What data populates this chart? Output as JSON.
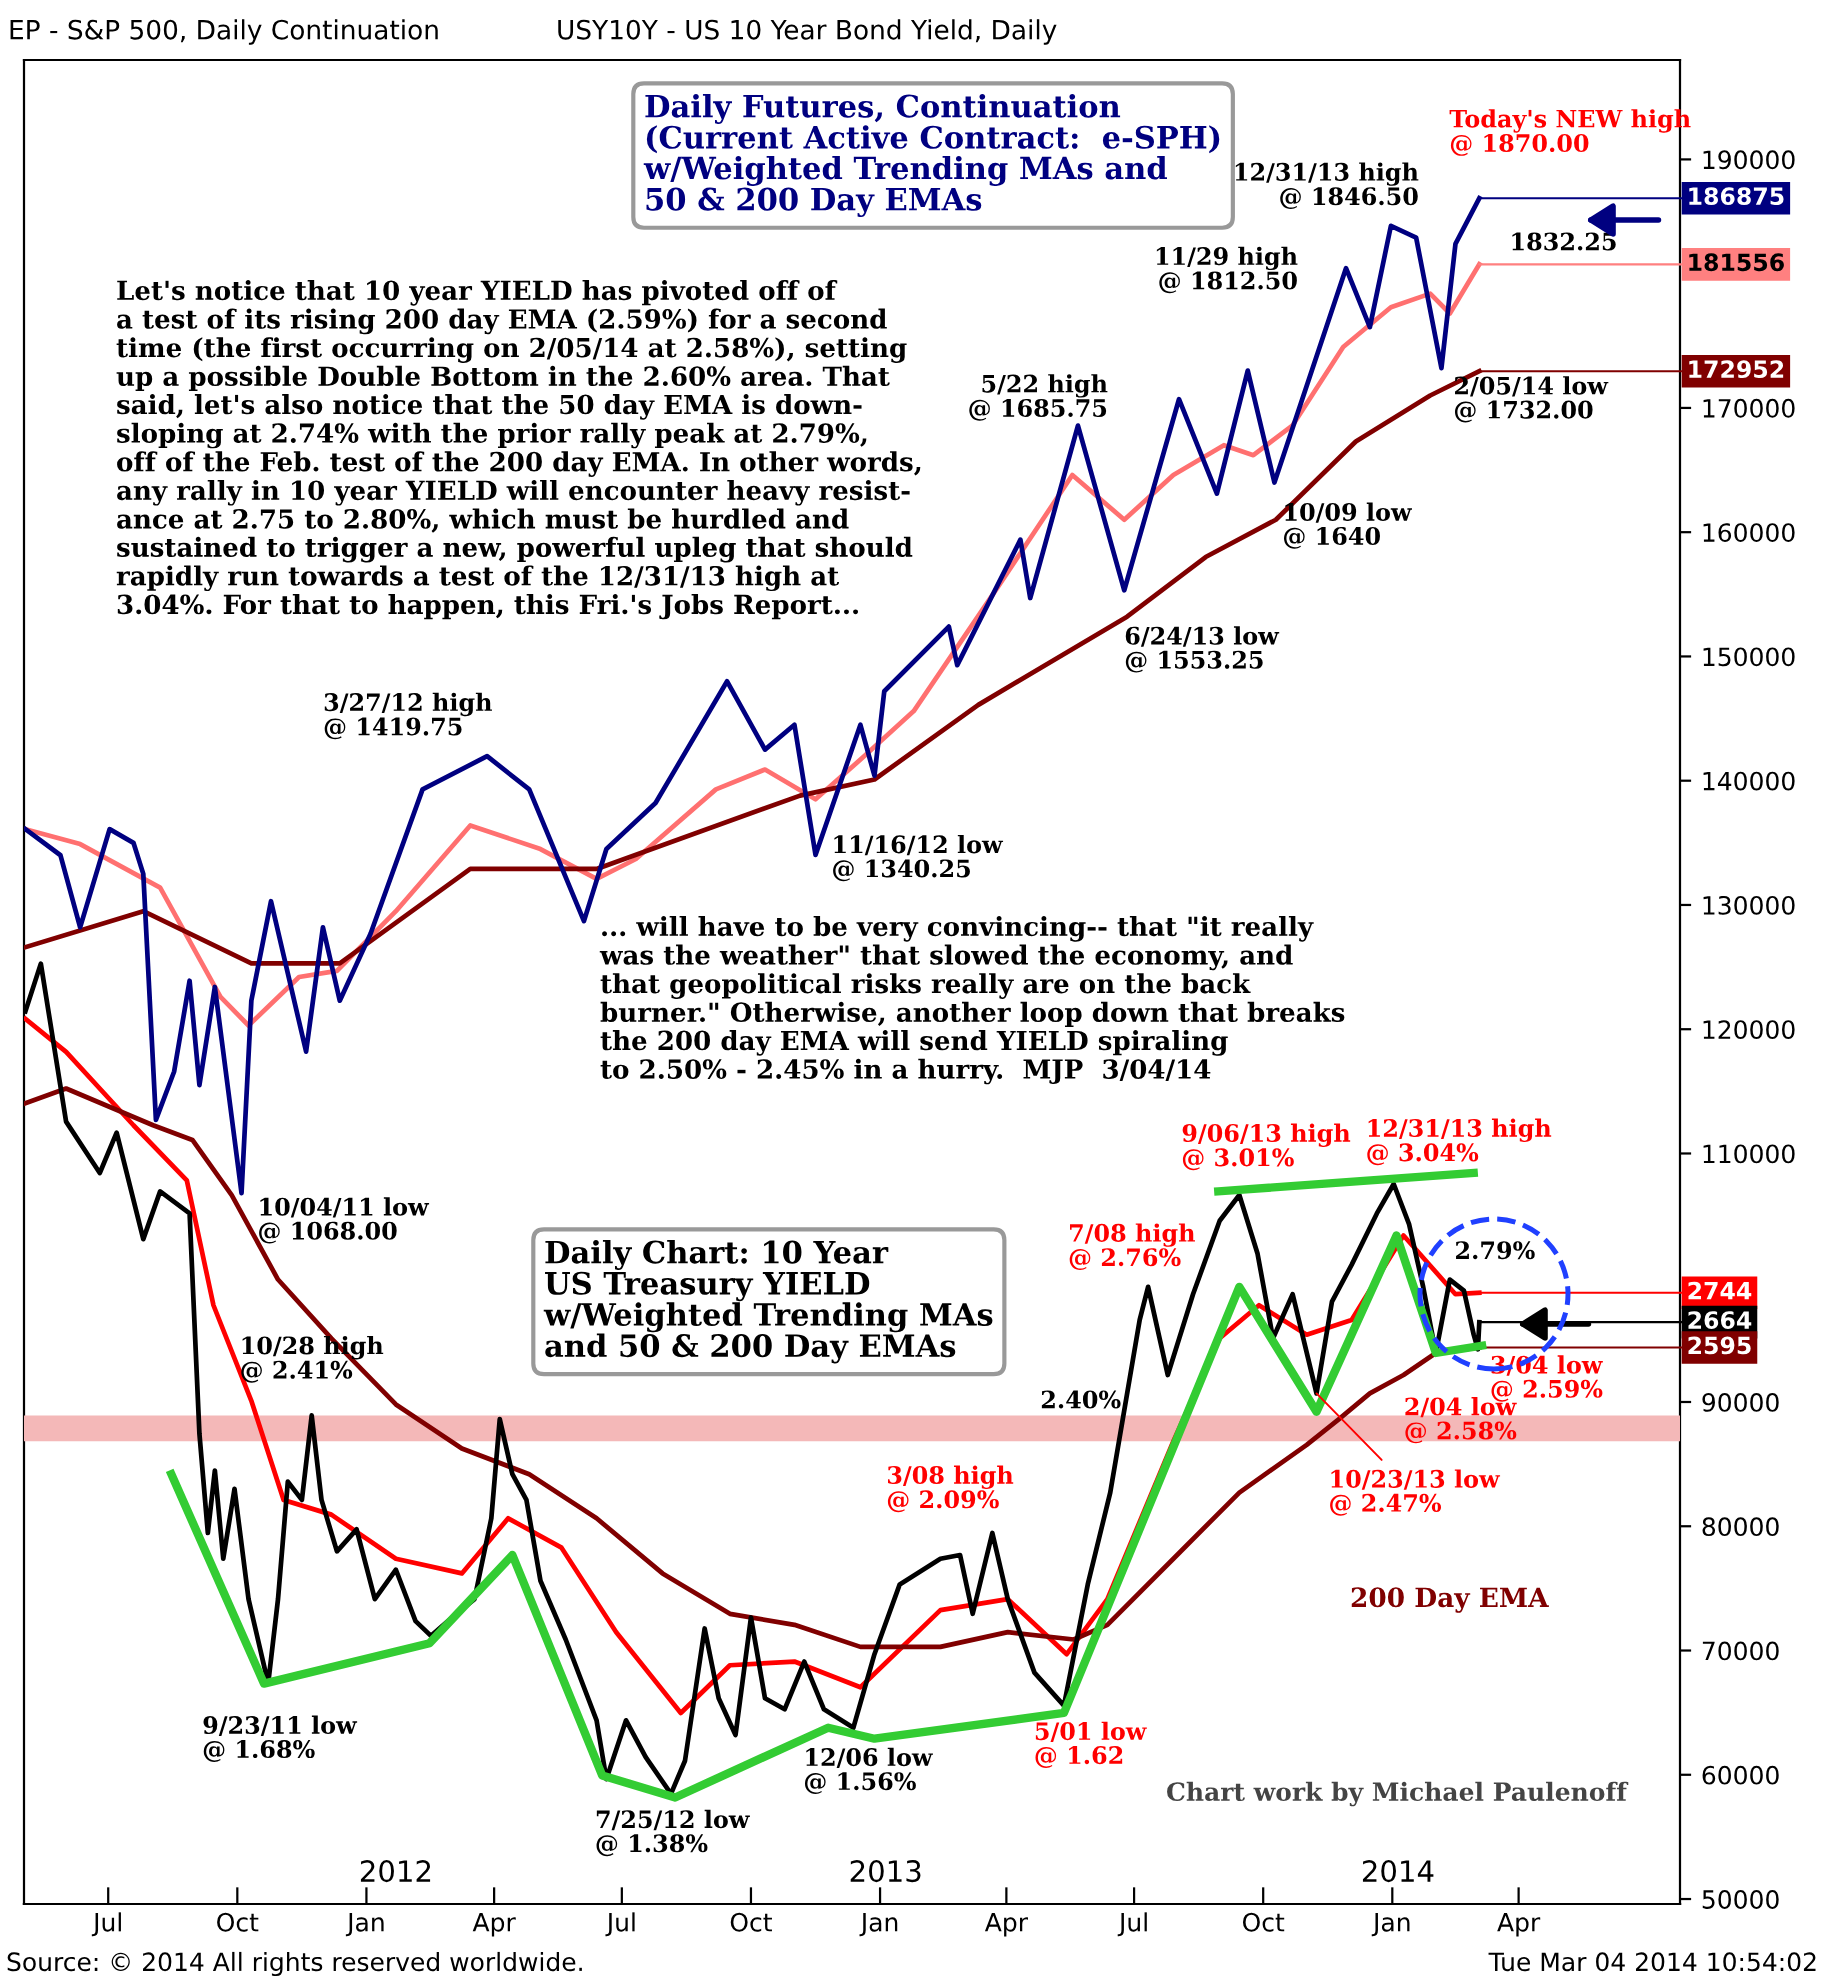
{
  "chart_data": [
    {
      "type": "line",
      "title": "EP - S&P 500, Daily Continuation",
      "xlim": [
        "2011-05-02",
        "2014-07-25"
      ],
      "xticks": [
        {
          "value": "2011-07-01",
          "label": "Jul"
        },
        {
          "value": "2011-10-01",
          "label": "Oct"
        },
        {
          "value": "2012-01-01",
          "label": "Jan"
        },
        {
          "value": "2012-04-01",
          "label": "Apr"
        },
        {
          "value": "2012-07-01",
          "label": "Jul"
        },
        {
          "value": "2012-10-01",
          "label": "Oct"
        },
        {
          "value": "2013-01-01",
          "label": "Jan"
        },
        {
          "value": "2013-04-01",
          "label": "Apr"
        },
        {
          "value": "2013-07-01",
          "label": "Jul"
        },
        {
          "value": "2013-10-01",
          "label": "Oct"
        },
        {
          "value": "2014-01-01",
          "label": "Jan"
        },
        {
          "value": "2014-04-01",
          "label": "Apr"
        }
      ],
      "x2lim": [
        "2011-05-02",
        "2014-07-25"
      ],
      "x2ticks": [
        {
          "value": "2012-01-22",
          "label": "2012"
        },
        {
          "value": "2013-01-05",
          "label": "2013"
        },
        {
          "value": "2014-01-05",
          "label": "2014"
        }
      ],
      "ylim": [
        49600,
        198000
      ],
      "yticks": [
        50000,
        60000,
        70000,
        80000,
        90000,
        110000,
        120000,
        130000,
        140000,
        150000,
        160000,
        170000,
        190000
      ],
      "series": [
        {
          "color": "#ff7070",
          "x": [
            "2011-05-03",
            "2011-06-11",
            "2011-08-07",
            "2011-09-19",
            "2011-10-09",
            "2011-11-14",
            "2011-12-11",
            "2012-01-22",
            "2012-03-15",
            "2012-05-04",
            "2012-06-13",
            "2012-07-11",
            "2012-09-06",
            "2012-10-11",
            "2012-11-16",
            "2012-12-21",
            "2013-01-25",
            "2013-03-23",
            "2013-05-18",
            "2013-06-24",
            "2013-07-29",
            "2013-09-03",
            "2013-09-24",
            "2013-10-22",
            "2013-11-27",
            "2013-12-31",
            "2014-01-28",
            "2014-02-11",
            "2014-03-04"
          ],
          "values": [
            136100,
            134900,
            131400,
            122600,
            120300,
            124200,
            124700,
            129500,
            136400,
            134500,
            132100,
            133700,
            139300,
            140900,
            138500,
            142000,
            145600,
            155100,
            164600,
            161000,
            164600,
            167000,
            166200,
            168600,
            174900,
            178100,
            179200,
            177600,
            181556
          ]
        },
        {
          "color": "#800000",
          "x": [
            "2011-05-03",
            "2011-07-26",
            "2011-10-11",
            "2011-12-13",
            "2012-03-15",
            "2012-06-13",
            "2012-11-05",
            "2012-12-28",
            "2013-03-12",
            "2013-06-26",
            "2013-08-21",
            "2013-10-10",
            "2013-12-06",
            "2014-01-28",
            "2014-03-04"
          ],
          "values": [
            126600,
            129500,
            125300,
            125300,
            132900,
            132900,
            138800,
            140100,
            146100,
            153200,
            158000,
            161000,
            167300,
            171000,
            172952
          ]
        },
        {
          "color": "#000080",
          "x": [
            "2011-05-03",
            "2011-05-28",
            "2011-06-11",
            "2011-07-02",
            "2011-07-19",
            "2011-07-26",
            "2011-08-04",
            "2011-08-17",
            "2011-08-28",
            "2011-09-04",
            "2011-09-15",
            "2011-10-04",
            "2011-10-11",
            "2011-10-25",
            "2011-11-19",
            "2011-12-01",
            "2011-12-13",
            "2012-01-04",
            "2012-02-10",
            "2012-03-27",
            "2012-04-26",
            "2012-06-04",
            "2012-06-20",
            "2012-07-25",
            "2012-09-14",
            "2012-10-11",
            "2012-11-01",
            "2012-11-16",
            "2012-12-18",
            "2012-12-28",
            "2013-01-04",
            "2013-02-19",
            "2013-02-25",
            "2013-04-11",
            "2013-04-18",
            "2013-05-22",
            "2013-06-24",
            "2013-08-02",
            "2013-08-29",
            "2013-09-20",
            "2013-10-09",
            "2013-11-29",
            "2013-12-16",
            "2013-12-31",
            "2014-01-18",
            "2014-02-05",
            "2014-02-15",
            "2014-03-04"
          ],
          "values": [
            136100,
            134000,
            128200,
            136100,
            135000,
            132500,
            112700,
            116600,
            123900,
            115500,
            123400,
            106800,
            122300,
            130300,
            118200,
            128200,
            122300,
            127700,
            139300,
            141975,
            139300,
            128700,
            134500,
            138200,
            148000,
            142500,
            144500,
            134025,
            144500,
            140400,
            147200,
            152400,
            149300,
            159400,
            154700,
            168575,
            155325,
            170700,
            163100,
            173000,
            164000,
            181250,
            176500,
            184650,
            183700,
            173200,
            183200,
            186875
          ]
        }
      ],
      "annotations": [
        "Daily Futures, Continuation\n(Current Active Contract:  e-SPH)\nw/Weighted Trending MAs and\n50 & 200 Day EMAs",
        "Let's notice that 10 year YIELD has pivoted off of\na test of its rising 200 day EMA (2.59%) for a second\ntime (the first occurring on 2/05/14 at 2.58%), setting\nup a possible Double Bottom in the 2.60% area. That\nsaid, let's also notice that the 50 day EMA is down-\nsloping at 2.74% with the prior rally peak at 2.79%,\noff of the Feb. test of the 200 day EMA. In other words,\nany rally in 10 year YIELD will encounter heavy resist-\nance at 2.75 to 2.80%, which must be hurdled and\nsustained to trigger a new, powerful upleg that should\nrapidly run towards a test of the 12/31/13 high at\n3.04%. For that to happen, this Fri.'s Jobs Report...",
        "... will have to be very convincing-- that \"it really\nwas the weather\" that slowed the economy, and\nthat geopolitical risks really are on the back\nburner.\" Otherwise, another loop down that breaks\nthe 200 day EMA will send YIELD spiraling\nto 2.50% - 2.45% in a hurry.  MJP  3/04/14",
        {
          "text": "10/04/11 low\n@ 1068.00",
          "x": "2011-10-04",
          "y": 106800
        },
        {
          "text": "3/27/12 high\n@ 1419.75",
          "x": "2012-03-27",
          "y": 141975
        },
        {
          "text": "11/16/12 low\n@ 1340.25",
          "x": "2012-11-16",
          "y": 134025
        },
        {
          "text": "5/22 high\n@ 1685.75",
          "x": "2013-05-22",
          "y": 168575
        },
        {
          "text": "6/24/13 low\n@ 1553.25",
          "x": "2013-06-24",
          "y": 155325
        },
        {
          "text": "10/09 low\n@ 1640",
          "x": "2013-10-09",
          "y": 164000
        },
        {
          "text": "11/29 high\n@ 1812.50",
          "x": "2013-11-29",
          "y": 181250
        },
        {
          "text": "12/31/13 high\n@ 1846.50",
          "x": "2013-12-31",
          "y": 184650
        },
        {
          "text": "2/05/14 low\n@ 1732.00",
          "x": "2014-02-05",
          "y": 173200
        },
        {
          "text": "Today's NEW high\n@ 1870.00",
          "x": "2014-03-04",
          "y": 187000
        },
        {
          "text": "1832.25",
          "x": "2014-02-25",
          "y": 183225
        },
        "Source: © 2014 All rights reserved worldwide.",
        "Tue Mar 04 2014 10:54:02",
        {
          "text": "186875",
          "x": "2014-03-04",
          "y": 186875
        },
        {
          "text": "181556",
          "x": "2014-03-04",
          "y": 181556
        },
        {
          "text": "172952",
          "x": "2014-03-04",
          "y": 172952
        }
      ]
    },
    {
      "type": "line",
      "title": "USY10Y - US 10 Year Bond Yield, Daily",
      "xlim": [
        "2011-05-02",
        "2014-07-25"
      ],
      "ylim": [
        1.08,
        6.1
      ],
      "tick_labels": false,
      "bands": [
        {
          "axis": "y",
          "from": 2.34,
          "to": 2.41,
          "color": "#f4b8b8"
        }
      ],
      "series": [
        {
          "color": "#ff0000",
          "x": [
            "2011-05-03",
            "2011-06-01",
            "2011-07-19",
            "2011-08-26",
            "2011-09-14",
            "2011-10-11",
            "2011-11-03",
            "2011-12-07",
            "2012-01-22",
            "2012-03-09",
            "2012-04-11",
            "2012-05-19",
            "2012-06-27",
            "2012-08-12",
            "2012-09-16",
            "2012-11-01",
            "2012-12-18",
            "2013-02-13",
            "2013-04-02",
            "2013-05-14",
            "2013-06-12",
            "2013-07-29",
            "2013-08-31",
            "2013-09-28",
            "2013-11-01",
            "2013-12-03",
            "2014-01-09",
            "2014-02-15",
            "2014-03-04"
          ],
          "values": [
            3.49,
            3.4,
            3.2,
            3.05,
            2.71,
            2.45,
            2.18,
            2.14,
            2.02,
            1.98,
            2.13,
            2.05,
            1.82,
            1.6,
            1.73,
            1.74,
            1.67,
            1.88,
            1.91,
            1.76,
            1.91,
            2.34,
            2.62,
            2.71,
            2.63,
            2.67,
            2.9,
            2.74,
            2.744
          ]
        },
        {
          "color": "#800000",
          "x": [
            "2011-05-03",
            "2011-06-01",
            "2011-08-02",
            "2011-08-30",
            "2011-09-27",
            "2011-10-30",
            "2011-12-07",
            "2012-01-22",
            "2012-03-09",
            "2012-04-26",
            "2012-06-13",
            "2012-07-30",
            "2012-09-16",
            "2012-11-01",
            "2012-12-18",
            "2013-02-13",
            "2013-04-02",
            "2013-05-19",
            "2013-06-12",
            "2013-07-29",
            "2013-09-14",
            "2013-11-01",
            "2013-11-24",
            "2013-12-16",
            "2014-01-09",
            "2014-02-01",
            "2014-03-04"
          ],
          "values": [
            3.26,
            3.3,
            3.2,
            3.16,
            3.01,
            2.78,
            2.62,
            2.44,
            2.32,
            2.25,
            2.13,
            1.98,
            1.87,
            1.84,
            1.78,
            1.78,
            1.82,
            1.8,
            1.84,
            2.02,
            2.2,
            2.33,
            2.4,
            2.47,
            2.52,
            2.58,
            2.595
          ]
        },
        {
          "color": "#000000",
          "x": [
            "2011-05-03",
            "2011-05-14",
            "2011-06-01",
            "2011-06-25",
            "2011-07-07",
            "2011-07-26",
            "2011-08-07",
            "2011-08-28",
            "2011-09-04",
            "2011-09-10",
            "2011-09-15",
            "2011-09-21",
            "2011-09-29",
            "2011-10-09",
            "2011-10-23",
            "2011-10-30",
            "2011-11-06",
            "2011-11-16",
            "2011-11-23",
            "2011-11-30",
            "2011-12-11",
            "2011-12-25",
            "2012-01-07",
            "2012-01-22",
            "2012-02-05",
            "2012-02-16",
            "2012-03-02",
            "2012-03-18",
            "2012-03-30",
            "2012-04-05",
            "2012-04-14",
            "2012-04-24",
            "2012-05-04",
            "2012-05-22",
            "2012-06-13",
            "2012-06-20",
            "2012-07-04",
            "2012-07-18",
            "2012-08-05",
            "2012-08-15",
            "2012-08-29",
            "2012-09-08",
            "2012-09-20",
            "2012-10-01",
            "2012-10-11",
            "2012-10-25",
            "2012-11-08",
            "2012-11-22",
            "2012-12-13",
            "2012-12-28",
            "2013-01-15",
            "2013-02-13",
            "2013-02-27",
            "2013-03-08",
            "2013-03-22",
            "2013-04-02",
            "2013-04-21",
            "2013-05-12",
            "2013-05-29",
            "2013-06-14",
            "2013-07-05",
            "2013-07-11",
            "2013-07-25",
            "2013-08-12",
            "2013-08-31",
            "2013-09-14",
            "2013-09-27",
            "2013-10-08",
            "2013-10-22",
            "2013-11-08",
            "2013-11-19",
            "2013-12-03",
            "2013-12-21",
            "2014-01-02",
            "2014-01-13",
            "2014-01-23",
            "2014-02-01",
            "2014-02-11",
            "2014-02-21",
            "2014-02-28",
            "2014-03-03",
            "2014-03-04"
          ],
          "values": [
            3.51,
            3.64,
            3.21,
            3.07,
            3.18,
            2.89,
            3.02,
            2.96,
            2.36,
            2.09,
            2.26,
            2.02,
            2.21,
            1.91,
            1.68,
            1.91,
            2.23,
            2.18,
            2.41,
            2.18,
            2.04,
            2.1,
            1.91,
            1.99,
            1.85,
            1.81,
            1.86,
            1.91,
            2.13,
            2.4,
            2.25,
            2.18,
            1.96,
            1.8,
            1.58,
            1.42,
            1.58,
            1.48,
            1.38,
            1.47,
            1.83,
            1.64,
            1.54,
            1.86,
            1.64,
            1.61,
            1.74,
            1.61,
            1.56,
            1.76,
            1.95,
            2.02,
            2.03,
            1.87,
            2.09,
            1.91,
            1.71,
            1.62,
            1.95,
            2.2,
            2.67,
            2.76,
            2.52,
            2.74,
            2.94,
            3.01,
            2.85,
            2.62,
            2.74,
            2.47,
            2.72,
            2.82,
            2.96,
            3.04,
            2.93,
            2.76,
            2.58,
            2.78,
            2.75,
            2.63,
            2.59,
            2.664
          ],
          "value_labels": [
            null,
            null,
            null,
            null,
            null,
            null,
            null,
            null,
            null,
            null,
            null,
            null,
            null,
            null,
            "9/23/11 low\n@ 1.68%",
            null,
            null,
            null,
            "10/28 high\n@ 2.41%",
            null,
            null,
            null,
            null,
            null,
            null,
            null,
            null,
            null,
            null,
            null,
            null,
            null,
            null,
            null,
            null,
            null,
            null,
            null,
            "7/25/12 low\n@ 1.38%",
            null,
            null,
            null,
            null,
            null,
            null,
            null,
            null,
            null,
            "12/06 low\n@ 1.56%",
            null,
            null,
            null,
            null,
            null,
            "3/08 high\n@ 2.09%",
            null,
            null,
            "5/01 low\n@ 1.62",
            null,
            null,
            null,
            "7/08 high\n@ 2.76%",
            null,
            null,
            null,
            "9/06/13 high\n@ 3.01%",
            null,
            null,
            null,
            "10/23/13 low\n@ 2.47%",
            null,
            null,
            null,
            "12/31/13 high\n@ 3.04%",
            null,
            null,
            "2/04 low\n@ 2.58%",
            null,
            null,
            null,
            "3/04 low\n@ 2.59%",
            null
          ]
        },
        {
          "color": "#33cc33",
          "x": [
            "2011-08-15",
            "2011-10-20",
            "2012-02-15",
            "2012-04-14",
            "2012-06-17",
            "2012-08-08",
            "2012-11-25",
            "2012-12-28",
            "2013-05-12",
            "2013-09-14",
            "2013-11-08",
            "2014-01-04",
            "2014-02-01",
            "2014-03-06"
          ],
          "values": [
            2.25,
            1.68,
            1.79,
            2.03,
            1.43,
            1.37,
            1.56,
            1.53,
            1.6,
            2.76,
            2.42,
            2.9,
            2.58,
            2.6
          ]
        },
        {
          "color": "#33cc33",
          "x": [
            "2013-08-30",
            "2014-02-28"
          ],
          "values": [
            3.02,
            3.07
          ]
        }
      ],
      "annotations": [
        "Daily Chart: 10 Year\nUS Treasury YIELD\nw/Weighted Trending MAs\nand 50 & 200 Day EMAs",
        "200 Day EMA",
        "Chart work by Michael Paulenoff",
        {
          "text": "2.79%",
          "x": "2014-02-10",
          "y": 2.79
        },
        {
          "text": "2.40%",
          "x": "2013-04-28",
          "y": 2.4
        },
        {
          "text": "2744",
          "x": "2014-03-04",
          "y": 2.744
        },
        {
          "text": "2664",
          "x": "2014-03-04",
          "y": 2.664
        },
        {
          "text": "2595",
          "x": "2014-03-04",
          "y": 2.595
        }
      ]
    }
  ]
}
